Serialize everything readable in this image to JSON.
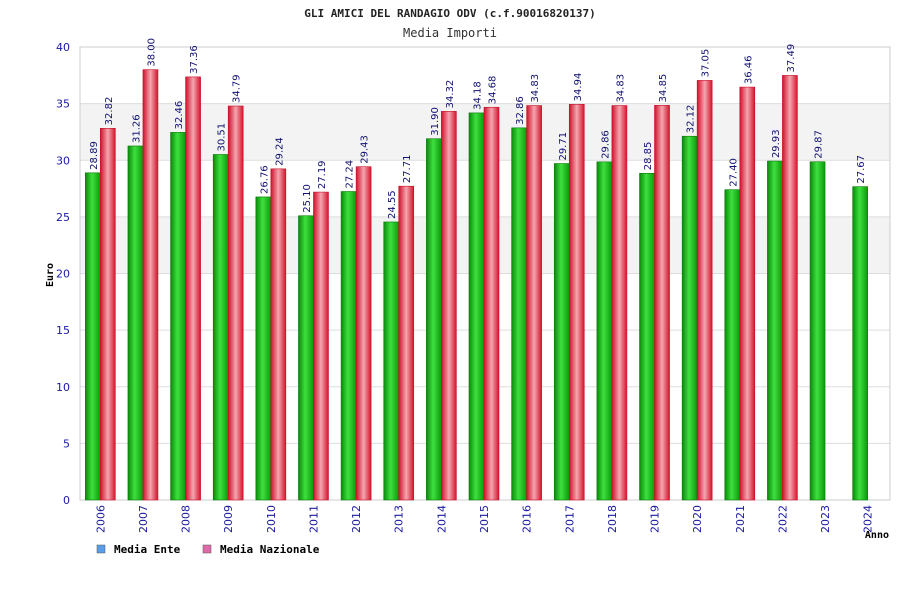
{
  "chart_data": {
    "type": "bar",
    "title": "GLI AMICI DEL RANDAGIO ODV (c.f.90016820137)",
    "subtitle": "Media Importi",
    "xlabel": "Anno",
    "ylabel": "Euro",
    "ylim": [
      0,
      40
    ],
    "yticks": [
      "0",
      "5",
      "10",
      "15",
      "20",
      "25",
      "30",
      "35",
      "40"
    ],
    "categories": [
      "2006",
      "2007",
      "2008",
      "2009",
      "2010",
      "2011",
      "2012",
      "2013",
      "2014",
      "2015",
      "2016",
      "2017",
      "2018",
      "2019",
      "2020",
      "2021",
      "2022",
      "2023",
      "2024"
    ],
    "series": [
      {
        "name": "Media Ente",
        "color": "#16b016",
        "values": [
          28.89,
          31.26,
          32.46,
          30.51,
          26.76,
          25.1,
          27.24,
          24.55,
          31.9,
          34.18,
          32.86,
          29.71,
          29.86,
          28.85,
          32.12,
          27.4,
          29.93,
          29.87,
          27.67
        ],
        "labels": [
          "28.89",
          "31.26",
          "32.46",
          "30.51",
          "26.76",
          "25.10",
          "27.24",
          "24.55",
          "31.90",
          "34.18",
          "32.86",
          "29.71",
          "29.86",
          "28.85",
          "32.12",
          "27.40",
          "29.93",
          "29.87",
          "27.67"
        ]
      },
      {
        "name": "Media Nazionale",
        "color": "#e8283c",
        "values": [
          32.82,
          38.0,
          37.36,
          34.79,
          29.24,
          27.19,
          29.43,
          27.71,
          34.32,
          34.68,
          34.83,
          34.94,
          34.83,
          34.85,
          37.05,
          36.46,
          37.49,
          null,
          null
        ],
        "labels": [
          "32.82",
          "38.00",
          "37.36",
          "34.79",
          "29.24",
          "27.19",
          "29.43",
          "27.71",
          "34.32",
          "34.68",
          "34.83",
          "34.94",
          "34.83",
          "34.85",
          "37.05",
          "36.46",
          "37.49",
          null,
          null
        ]
      }
    ],
    "legend": [
      {
        "label": "Media Ente",
        "color": "#5a9ee8"
      },
      {
        "label": "Media Nazionale",
        "color": "#e06aa8"
      }
    ],
    "grid": true,
    "legend_position": "bottom-left"
  }
}
